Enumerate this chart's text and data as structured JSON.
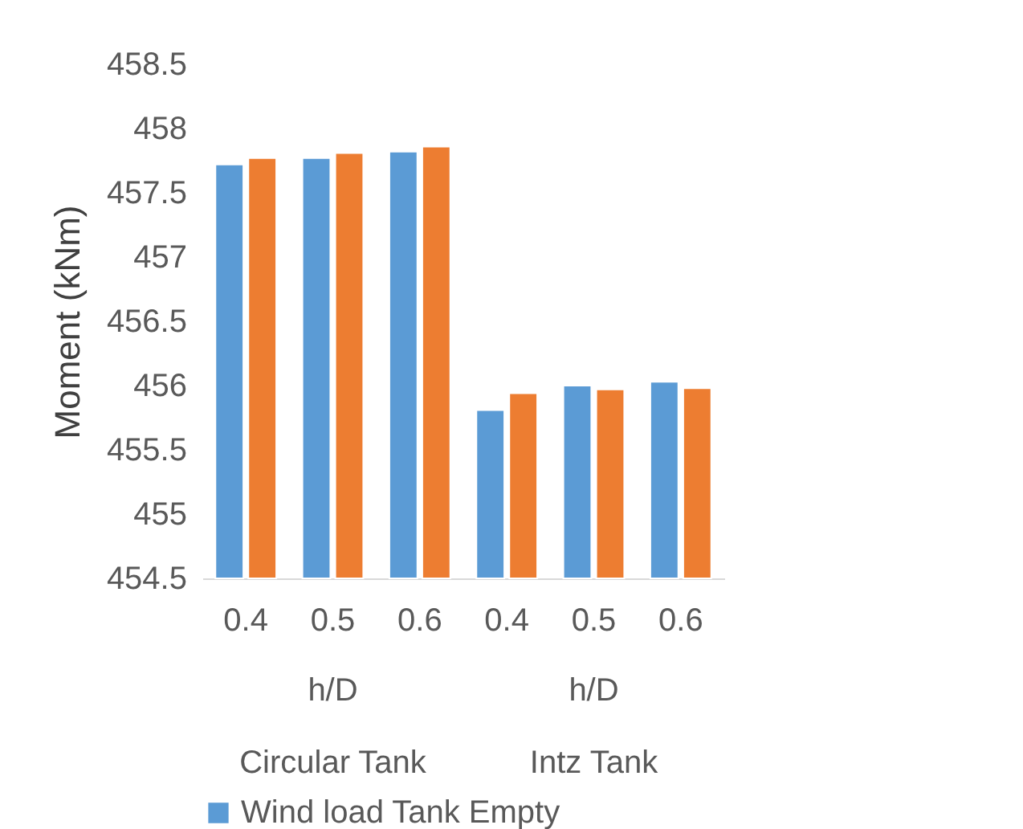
{
  "chart_data": {
    "type": "bar",
    "ylabel": "Moment (kNm)",
    "categories": [
      "0.4",
      "0.5",
      "0.6",
      "0.4",
      "0.5",
      "0.6"
    ],
    "series": [
      {
        "name": "Wind load Tank Empty",
        "color": "#5b9bd5",
        "values": [
          457.72,
          457.77,
          457.82,
          455.81,
          456.0,
          456.03
        ]
      },
      {
        "color": "#ed7d31",
        "values": [
          457.77,
          457.81,
          457.86,
          455.94,
          455.97,
          455.98
        ]
      }
    ],
    "ylim": [
      454.5,
      458.5
    ],
    "yticks": [
      454.5,
      455,
      455.5,
      456,
      456.5,
      457,
      457.5,
      458,
      458.5
    ],
    "grid": false,
    "legend": "bottom",
    "annotations": [
      "h/D",
      "h/D",
      "Circular Tank",
      "Intz Tank"
    ]
  }
}
